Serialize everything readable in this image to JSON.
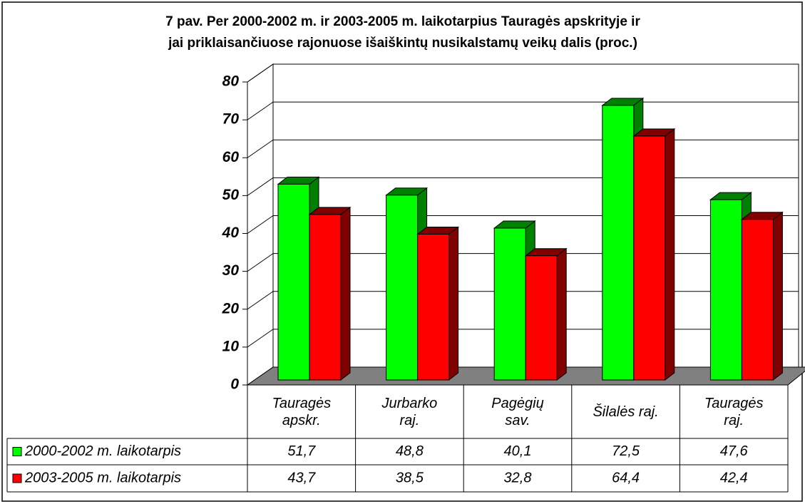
{
  "chart_data": {
    "type": "bar3d",
    "title": [
      "7 pav. Per 2000-2002 m. ir 2003-2005 m. laikotarpius Tauragės apskrityje ir",
      "jai priklaisančiuose rajonuose išaiškintų nusikalstamų veikų dalis (proc.)"
    ],
    "categories": [
      "Tauragės apskr.",
      "Jurbarko raj.",
      "Pagėgių sav.",
      "Šilalės raj.",
      "Tauragės raj."
    ],
    "series": [
      {
        "name": "2000-2002 m. laikotarpis",
        "color": "#00ff00",
        "side": "#008000",
        "values": [
          51.7,
          48.8,
          40.1,
          72.5,
          47.6
        ],
        "value_labels": [
          "51,7",
          "48,8",
          "40,1",
          "72,5",
          "47,6"
        ]
      },
      {
        "name": "2003-2005 m. laikotarpis",
        "color": "#ff0000",
        "side": "#800000",
        "values": [
          43.7,
          38.5,
          32.8,
          64.4,
          42.4
        ],
        "value_labels": [
          "43,7",
          "38,5",
          "32,8",
          "64,4",
          "42,4"
        ]
      }
    ],
    "ylim": [
      0,
      80
    ],
    "yticks": [
      0,
      10,
      20,
      30,
      40,
      50,
      60,
      70,
      80
    ],
    "grid": true
  }
}
